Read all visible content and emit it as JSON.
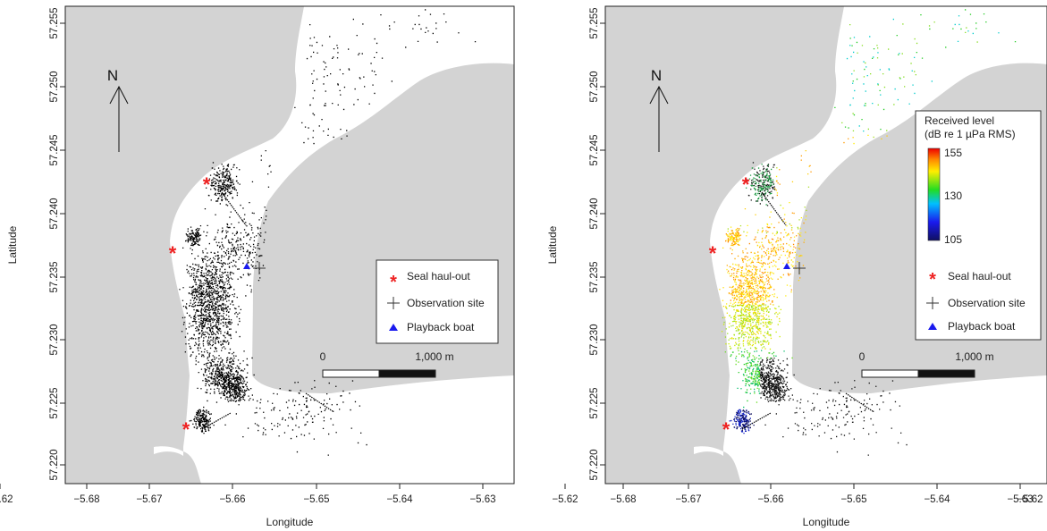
{
  "axes": {
    "xlabel": "Longitude",
    "ylabel": "Latitude",
    "x_ticks": [
      "−5.68",
      "−5.67",
      "−5.66",
      "−5.65",
      "−5.64",
      "−5.63",
      "−5.62"
    ],
    "y_ticks": [
      "57.220",
      "57.225",
      "57.230",
      "57.235",
      "57.240",
      "57.245",
      "57.250",
      "57.255"
    ]
  },
  "north_label": "N",
  "legend": {
    "seal_haulout": "Seal haul-out",
    "observation_site": "Observation site",
    "playback_boat": "Playback boat"
  },
  "scale_bar": {
    "start_label": "0",
    "end_label": "1,000 m"
  },
  "colorbar": {
    "title_line1": "Received level",
    "title_line2": "(dB re 1 µPa RMS)",
    "tick_high": "155",
    "tick_mid": "130",
    "tick_low": "105"
  },
  "colors": {
    "land": "#d3d3d3",
    "water": "#ffffff",
    "track": "#000000",
    "haulout": "#ee2222",
    "boat": "#1a1aee"
  },
  "chart_data": [
    {
      "type": "scatter",
      "panel": "left",
      "xlabel": "Longitude",
      "ylabel": "Latitude",
      "xlim": [
        -5.683,
        -5.618
      ],
      "ylim": [
        57.2192,
        57.2563
      ],
      "seal_haulouts": [
        {
          "lon": -5.6625,
          "lat": 57.2425
        },
        {
          "lon": -5.6665,
          "lat": 57.237
        },
        {
          "lon": -5.6645,
          "lat": 57.2221
        }
      ],
      "observation_site": {
        "lon": -5.6545,
        "lat": 57.2357
      },
      "playback_boat": {
        "lon": -5.6558,
        "lat": 57.2358
      },
      "tracks": "black positional dots of tracked animals"
    },
    {
      "type": "scatter",
      "panel": "right",
      "xlabel": "Longitude",
      "ylabel": "Latitude",
      "xlim": [
        -5.683,
        -5.618
      ],
      "ylim": [
        57.2192,
        57.2563
      ],
      "seal_haulouts": [
        {
          "lon": -5.6622,
          "lat": 57.2424
        },
        {
          "lon": -5.6665,
          "lat": 57.237
        },
        {
          "lon": -5.6625,
          "lat": 57.2221
        }
      ],
      "observation_site": {
        "lon": -5.6545,
        "lat": 57.2357
      },
      "playback_boat": {
        "lon": -5.6558,
        "lat": 57.2358
      },
      "color_scale": {
        "min": 105,
        "mid": 130,
        "max": 155,
        "unit": "dB re 1 µPa RMS"
      },
      "tracks": "positional dots coloured by received level; black where not measured"
    }
  ]
}
